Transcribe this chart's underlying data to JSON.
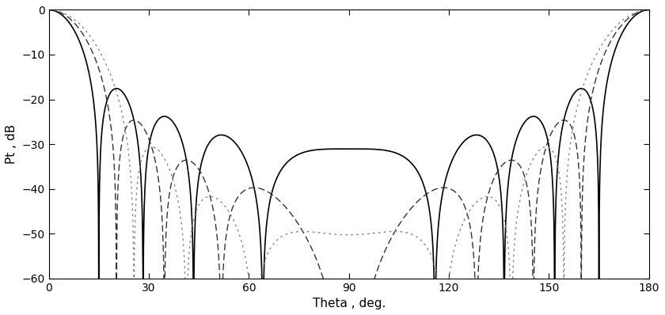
{
  "title": "",
  "xlabel": "Theta , deg.",
  "ylabel": "Pt , dB",
  "xlim": [
    0,
    180
  ],
  "ylim": [
    -60,
    0
  ],
  "xticks": [
    0,
    30,
    60,
    90,
    120,
    150,
    180
  ],
  "yticks": [
    0,
    -10,
    -20,
    -30,
    -40,
    -50,
    -60
  ],
  "background_color": "#ffffff",
  "curve1_color": "#000000",
  "curve2_color": "#333333",
  "curve3_color": "#888888",
  "curve1_lw": 1.2,
  "curve2_lw": 1.0,
  "curve3_lw": 1.0
}
